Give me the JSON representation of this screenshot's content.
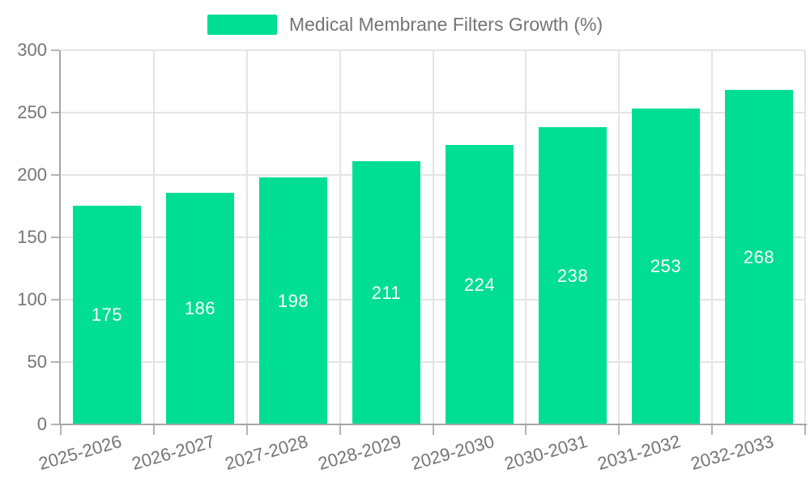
{
  "chart_data": {
    "type": "bar",
    "title": "Medical Membrane Filters Growth (%)",
    "categories": [
      "2025-2026",
      "2026-2027",
      "2027-2028",
      "2028-2029",
      "2029-2030",
      "2030-2031",
      "2031-2032",
      "2032-2033"
    ],
    "values": [
      175,
      186,
      198,
      211,
      224,
      238,
      253,
      268
    ],
    "series": [
      {
        "name": "Medical Membrane Filters Growth (%)",
        "values": [
          175,
          186,
          198,
          211,
          224,
          238,
          253,
          268
        ]
      }
    ],
    "xlabel": "",
    "ylabel": "",
    "ylim": [
      0,
      300
    ],
    "y_ticks": [
      0,
      50,
      100,
      150,
      200,
      250,
      300
    ],
    "grid": true,
    "legend_position": "top-center",
    "value_label_position": "inside-center",
    "x_label_rotation_deg": -16
  },
  "legend": {
    "label": "Medical Membrane Filters Growth (%)"
  },
  "colors": {
    "bar": "#00DE94",
    "axis_line": "#A6A6A6",
    "tick": "#B4B4B4",
    "grid_line": "#E4E4E4",
    "text": "#757575",
    "value_label": "#FFFFFF",
    "background": "#FFFFFF"
  }
}
